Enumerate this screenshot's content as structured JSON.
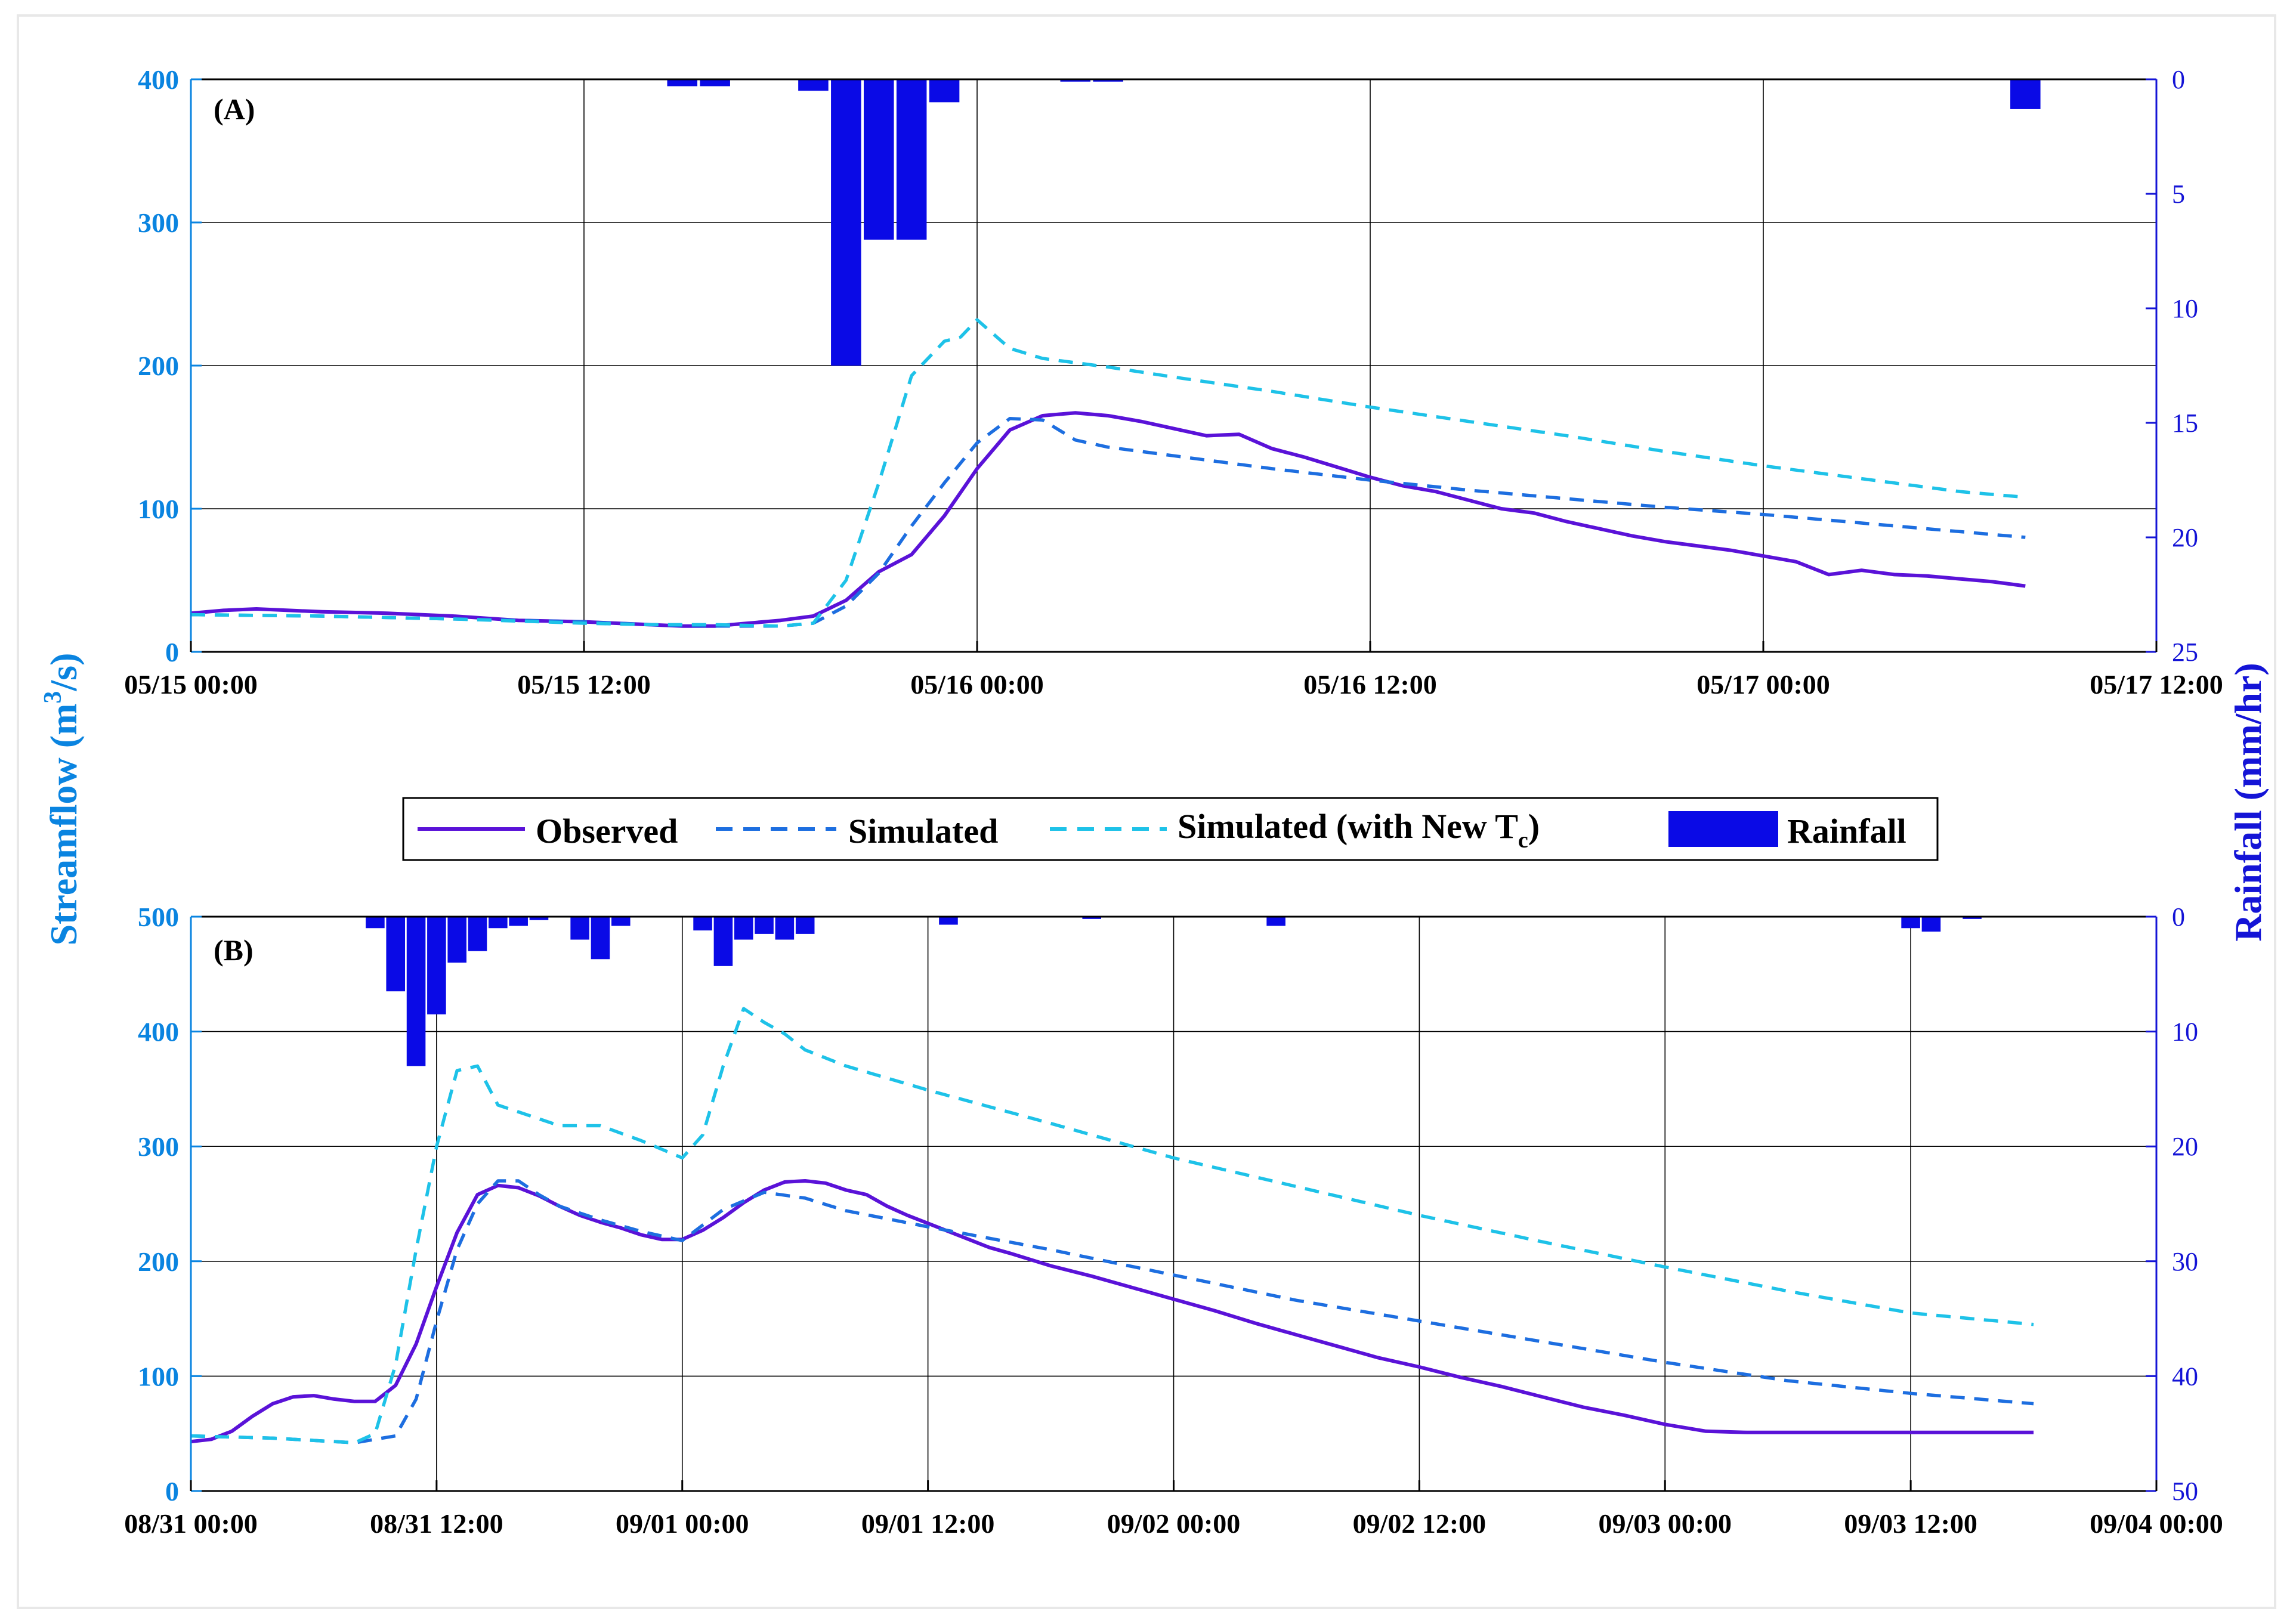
{
  "colors": {
    "observed": "#5a12d8",
    "simulated": "#1d6ee0",
    "simulated_new": "#1ec2e8",
    "rainfall": "#0a0ae6",
    "left_axis": "#0a84e0",
    "right_axis": "#1414d6",
    "border": "#e8e8e8"
  },
  "axis_labels": {
    "left_base": "Streamflow  (m",
    "left_sup": "3",
    "left_end": "/s)",
    "right": "Rainfall (mm/hr)"
  },
  "legend": {
    "observed": "Observed",
    "simulated": "Simulated",
    "simulated_new_base": "Simulated  (with  New  T",
    "simulated_new_sub": "c",
    "simulated_new_end": ")",
    "rainfall": "Rainfall"
  },
  "chart_data": [
    {
      "type": "line",
      "panel_label": "(A)",
      "x_unit": "hours from 05/15 00:00",
      "xlim": [
        0,
        60
      ],
      "x_ticks": [
        0,
        12,
        24,
        36,
        48,
        60
      ],
      "x_tick_labels": [
        "05/15 00:00",
        "05/15 12:00",
        "05/16 00:00",
        "05/16 12:00",
        "05/17 00:00",
        "05/17 12:00"
      ],
      "ylim": [
        0,
        400
      ],
      "y_ticks": [
        0,
        100,
        200,
        300,
        400
      ],
      "y_tick_labels": [
        "0",
        "100",
        "200",
        "300",
        "400"
      ],
      "ylim_right": [
        0,
        25
      ],
      "y_right_ticks": [
        0,
        5,
        10,
        15,
        20,
        25
      ],
      "y_right_tick_labels": [
        "0",
        "5",
        "10",
        "15",
        "20",
        "25"
      ],
      "ylabel": "Streamflow (m3/s)",
      "ylabel_right": "Rainfall (mm/hr)",
      "grid": true,
      "series": [
        {
          "name": "Observed",
          "style": "solid",
          "x": [
            0,
            1,
            2,
            4,
            6,
            8,
            10,
            12,
            14,
            15,
            16,
            17,
            18,
            19,
            20,
            21,
            22,
            23,
            24,
            25,
            26,
            27,
            28,
            29,
            30,
            31,
            32,
            33,
            34,
            35,
            36,
            37,
            38,
            39,
            40,
            41,
            42,
            43,
            44,
            45,
            46,
            47,
            48,
            49,
            50,
            51,
            52,
            53,
            54,
            55,
            56
          ],
          "values": [
            27,
            29,
            30,
            28,
            27,
            25,
            22,
            21,
            19,
            18,
            18,
            20,
            22,
            25,
            36,
            56,
            68,
            95,
            128,
            155,
            165,
            167,
            165,
            161,
            156,
            151,
            152,
            142,
            136,
            129,
            122,
            116,
            112,
            106,
            100,
            97,
            91,
            86,
            81,
            77,
            74,
            71,
            67,
            63,
            54,
            57,
            54,
            53,
            51,
            49,
            46
          ]
        },
        {
          "name": "Simulated",
          "style": "dashed",
          "x": [
            0,
            4,
            8,
            12,
            14,
            16,
            18,
            19,
            20,
            21,
            22,
            23,
            24,
            25,
            26,
            27,
            28,
            30,
            33,
            36,
            39,
            42,
            45,
            48,
            51,
            53,
            54,
            56
          ],
          "values": [
            26,
            25,
            23,
            21,
            19,
            18,
            18,
            20,
            32,
            55,
            88,
            118,
            146,
            163,
            162,
            148,
            143,
            137,
            128,
            120,
            113,
            107,
            101,
            96,
            90,
            86,
            84,
            80
          ]
        },
        {
          "name": "Simulated (with New Tc)",
          "style": "dashed",
          "x": [
            0,
            4,
            8,
            12,
            14,
            16,
            18,
            19,
            20,
            21,
            22,
            23,
            23.5,
            24,
            25,
            26,
            28,
            30,
            33,
            36,
            39,
            42,
            45,
            48,
            51,
            54,
            55,
            56
          ],
          "values": [
            26,
            25,
            23,
            20,
            19,
            19,
            18,
            20,
            50,
            118,
            193,
            217,
            220,
            232,
            212,
            205,
            199,
            192,
            182,
            171,
            161,
            151,
            140,
            130,
            121,
            112,
            110,
            108
          ]
        }
      ],
      "rainfall": {
        "name": "Rainfall",
        "x": [
          15,
          16,
          19,
          20,
          21,
          22,
          23,
          27,
          28,
          56
        ],
        "values": [
          0.3,
          0.3,
          0.5,
          12.5,
          7,
          7,
          1,
          0.1,
          0.1,
          1.3
        ]
      }
    },
    {
      "type": "line",
      "panel_label": "(B)",
      "x_unit": "hours from 08/31 00:00",
      "xlim": [
        0,
        96
      ],
      "x_ticks": [
        0,
        12,
        24,
        36,
        48,
        60,
        72,
        84,
        96
      ],
      "x_tick_labels": [
        "08/31 00:00",
        "08/31 12:00",
        "09/01 00:00",
        "09/01 12:00",
        "09/02 00:00",
        "09/02 12:00",
        "09/03 00:00",
        "09/03 12:00",
        "09/04 00:00"
      ],
      "ylim": [
        0,
        500
      ],
      "y_ticks": [
        0,
        100,
        200,
        300,
        400,
        500
      ],
      "y_tick_labels": [
        "0",
        "100",
        "200",
        "300",
        "400",
        "500"
      ],
      "ylim_right": [
        0,
        50
      ],
      "y_right_ticks": [
        0,
        10,
        20,
        30,
        40,
        50
      ],
      "y_right_tick_labels": [
        "0",
        "10",
        "20",
        "30",
        "40",
        "50"
      ],
      "ylabel": "Streamflow (m3/s)",
      "ylabel_right": "Rainfall (mm/hr)",
      "grid": true,
      "series": [
        {
          "name": "Observed",
          "style": "solid",
          "x": [
            0,
            1,
            2,
            3,
            4,
            5,
            6,
            7,
            8,
            9,
            10,
            11,
            12,
            13,
            14,
            15,
            16,
            17,
            18,
            19,
            20,
            21,
            22,
            23,
            24,
            25,
            26,
            27,
            28,
            29,
            30,
            31,
            32,
            33,
            34,
            35,
            36,
            37,
            38,
            39,
            40,
            42,
            44,
            46,
            48,
            50,
            52,
            54,
            56,
            58,
            60,
            62,
            64,
            66,
            68,
            70,
            72,
            74,
            76,
            78,
            80,
            82,
            84,
            86,
            88,
            90
          ],
          "values": [
            43,
            45,
            52,
            65,
            76,
            82,
            83,
            80,
            78,
            78,
            92,
            128,
            178,
            225,
            258,
            266,
            264,
            257,
            248,
            240,
            234,
            229,
            223,
            219,
            219,
            227,
            238,
            251,
            262,
            269,
            270,
            268,
            262,
            258,
            248,
            240,
            233,
            226,
            219,
            212,
            207,
            196,
            187,
            177,
            167,
            157,
            146,
            136,
            126,
            116,
            108,
            99,
            91,
            82,
            73,
            66,
            58,
            52,
            51,
            51,
            51,
            51,
            51,
            51,
            51,
            51
          ]
        },
        {
          "name": "Simulated",
          "style": "dashed",
          "x": [
            0,
            4,
            8,
            10,
            11,
            12,
            13,
            14,
            15,
            16,
            17,
            18,
            20,
            22,
            24,
            26,
            28,
            30,
            32,
            36,
            42,
            48,
            54,
            60,
            66,
            72,
            78,
            84,
            90
          ],
          "values": [
            48,
            46,
            42,
            48,
            80,
            148,
            210,
            250,
            270,
            270,
            258,
            248,
            236,
            226,
            218,
            245,
            260,
            255,
            244,
            230,
            210,
            188,
            166,
            148,
            130,
            112,
            96,
            85,
            76
          ]
        },
        {
          "name": "Simulated (with New Tc)",
          "style": "dashed",
          "x": [
            0,
            4,
            8,
            9,
            10,
            11,
            12,
            13,
            14,
            15,
            16,
            18,
            20,
            22,
            24,
            25,
            26,
            27,
            28,
            29,
            30,
            32,
            36,
            42,
            48,
            54,
            60,
            66,
            72,
            78,
            84,
            90
          ],
          "values": [
            48,
            46,
            42,
            50,
            110,
            210,
            300,
            366,
            370,
            336,
            330,
            318,
            318,
            305,
            290,
            310,
            370,
            420,
            408,
            398,
            384,
            370,
            349,
            320,
            290,
            265,
            240,
            217,
            195,
            174,
            155,
            145
          ]
        }
      ],
      "rainfall": {
        "name": "Rainfall",
        "x": [
          9,
          10,
          11,
          12,
          13,
          14,
          15,
          16,
          17,
          19,
          20,
          21,
          25,
          26,
          27,
          28,
          29,
          30,
          37,
          44,
          53,
          84,
          85,
          87
        ],
        "values": [
          1,
          6.5,
          13,
          8.5,
          4,
          3,
          1,
          0.8,
          0.3,
          2,
          3.7,
          0.8,
          1.2,
          4.3,
          2,
          1.5,
          2,
          1.5,
          0.7,
          0.2,
          0.8,
          1,
          1.3,
          0.2
        ]
      }
    }
  ]
}
